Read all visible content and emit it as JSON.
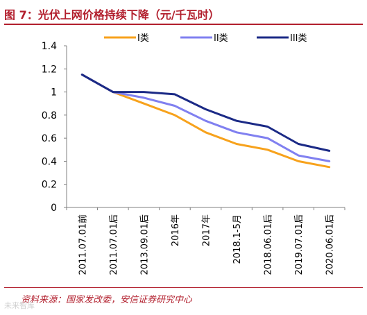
{
  "title": "图 7：光伏上网价格持续下降（元/千瓦时）",
  "source": "资料来源：国家发改委，安信证券研究中心",
  "watermark": "未来智库",
  "chart_data": {
    "type": "line",
    "title": "",
    "xlabel": "",
    "ylabel": "",
    "ylim": [
      0,
      1.4
    ],
    "ytick_step": 0.2,
    "yticks": [
      "0",
      "0.2",
      "0.4",
      "0.6",
      "0.8",
      "1",
      "1.2",
      "1.4"
    ],
    "grid": false,
    "legend_position": "top-center",
    "categories": [
      "2011.07.01前",
      "2011.07.01后",
      "2013.09.01后",
      "2016年",
      "2017年",
      "2018.1-5月",
      "2018.06.01后",
      "2019.07.01后",
      "2020.06.01后"
    ],
    "series": [
      {
        "name": "I类",
        "color": "#f7a21c",
        "values": [
          1.15,
          1.0,
          0.9,
          0.8,
          0.65,
          0.55,
          0.5,
          0.4,
          0.35
        ]
      },
      {
        "name": "II类",
        "color": "#8080f0",
        "values": [
          1.15,
          1.0,
          0.95,
          0.88,
          0.75,
          0.65,
          0.6,
          0.45,
          0.4
        ]
      },
      {
        "name": "III类",
        "color": "#1b2a86",
        "values": [
          1.15,
          1.0,
          1.0,
          0.98,
          0.85,
          0.75,
          0.7,
          0.55,
          0.49
        ]
      }
    ]
  }
}
